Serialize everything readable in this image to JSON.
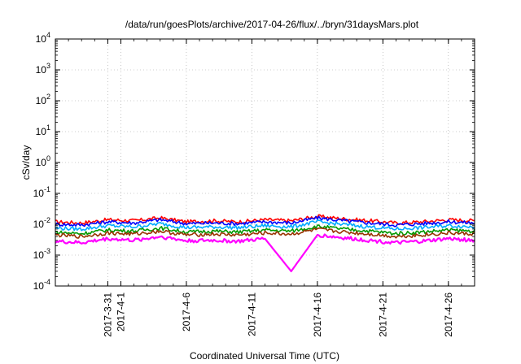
{
  "chart_data": {
    "type": "line",
    "title": "/data/run/goesPlots/archive/2017-04-26/flux/../bryn/31daysMars.plot",
    "xlabel": "Coordinated Universal Time (UTC)",
    "ylabel": "cSv/day",
    "yscale": "log",
    "ylim": [
      0.0001,
      10000
    ],
    "xlim": [
      "2017-03-27",
      "2017-04-28"
    ],
    "grid": true,
    "y_ticks": [
      {
        "mantissa": "10",
        "exp": "-4",
        "value": 0.0001
      },
      {
        "mantissa": "10",
        "exp": "-3",
        "value": 0.001
      },
      {
        "mantissa": "10",
        "exp": "-2",
        "value": 0.01
      },
      {
        "mantissa": "10",
        "exp": "-1",
        "value": 0.1
      },
      {
        "mantissa": "10",
        "exp": "0",
        "value": 1
      },
      {
        "mantissa": "10",
        "exp": "1",
        "value": 10
      },
      {
        "mantissa": "10",
        "exp": "2",
        "value": 100
      },
      {
        "mantissa": "10",
        "exp": "3",
        "value": 1000
      },
      {
        "mantissa": "10",
        "exp": "4",
        "value": 10000
      }
    ],
    "x_ticks": [
      {
        "label": "2017-3-31",
        "date": "2017-03-31"
      },
      {
        "label": "2017-4-1",
        "date": "2017-04-01"
      },
      {
        "label": "2017-4-6",
        "date": "2017-04-06"
      },
      {
        "label": "2017-4-11",
        "date": "2017-04-11"
      },
      {
        "label": "2017-4-16",
        "date": "2017-04-16"
      },
      {
        "label": "2017-4-21",
        "date": "2017-04-21"
      },
      {
        "label": "2017-4-26",
        "date": "2017-04-26"
      }
    ],
    "series": [
      {
        "color": "#ff0000",
        "x": [
          "2017-03-27",
          "2017-03-29",
          "2017-03-31",
          "2017-04-02",
          "2017-04-04",
          "2017-04-06",
          "2017-04-08",
          "2017-04-10",
          "2017-04-12",
          "2017-04-14",
          "2017-04-16",
          "2017-04-18",
          "2017-04-20",
          "2017-04-22",
          "2017-04-24",
          "2017-04-26",
          "2017-04-28"
        ],
        "y": [
          0.012,
          0.011,
          0.014,
          0.013,
          0.016,
          0.012,
          0.013,
          0.012,
          0.014,
          0.013,
          0.018,
          0.015,
          0.013,
          0.011,
          0.012,
          0.014,
          0.013
        ]
      },
      {
        "color": "#0000ff",
        "x": [
          "2017-03-27",
          "2017-03-29",
          "2017-03-31",
          "2017-04-02",
          "2017-04-04",
          "2017-04-06",
          "2017-04-08",
          "2017-04-10",
          "2017-04-12",
          "2017-04-14",
          "2017-04-16",
          "2017-04-18",
          "2017-04-20",
          "2017-04-22",
          "2017-04-24",
          "2017-04-26",
          "2017-04-28"
        ],
        "y": [
          0.01,
          0.0095,
          0.012,
          0.011,
          0.014,
          0.0105,
          0.011,
          0.0105,
          0.012,
          0.011,
          0.016,
          0.013,
          0.011,
          0.0095,
          0.0105,
          0.012,
          0.011
        ]
      },
      {
        "color": "#00aaff",
        "x": [
          "2017-03-27",
          "2017-03-29",
          "2017-03-31",
          "2017-04-02",
          "2017-04-04",
          "2017-04-06",
          "2017-04-08",
          "2017-04-10",
          "2017-04-12",
          "2017-04-14",
          "2017-04-16",
          "2017-04-18",
          "2017-04-20",
          "2017-04-22",
          "2017-04-24",
          "2017-04-26",
          "2017-04-28"
        ],
        "y": [
          0.0075,
          0.007,
          0.009,
          0.0082,
          0.0105,
          0.0078,
          0.0082,
          0.0078,
          0.009,
          0.0082,
          0.012,
          0.0098,
          0.0082,
          0.007,
          0.0078,
          0.009,
          0.0082
        ]
      },
      {
        "color": "#009900",
        "x": [
          "2017-03-27",
          "2017-03-29",
          "2017-03-31",
          "2017-04-02",
          "2017-04-04",
          "2017-04-06",
          "2017-04-08",
          "2017-04-10",
          "2017-04-12",
          "2017-04-14",
          "2017-04-16",
          "2017-04-18",
          "2017-04-20",
          "2017-04-22",
          "2017-04-24",
          "2017-04-26",
          "2017-04-28"
        ],
        "y": [
          0.0055,
          0.005,
          0.0065,
          0.006,
          0.0075,
          0.0056,
          0.006,
          0.0056,
          0.0065,
          0.006,
          0.0085,
          0.007,
          0.006,
          0.005,
          0.0056,
          0.0065,
          0.006
        ]
      },
      {
        "color": "#993300",
        "x": [
          "2017-03-27",
          "2017-03-29",
          "2017-03-31",
          "2017-04-02",
          "2017-04-04",
          "2017-04-06",
          "2017-04-08",
          "2017-04-10",
          "2017-04-12",
          "2017-04-14",
          "2017-04-16",
          "2017-04-18",
          "2017-04-20",
          "2017-04-22",
          "2017-04-24",
          "2017-04-26",
          "2017-04-28"
        ],
        "y": [
          0.0045,
          0.004,
          0.0052,
          0.0048,
          0.006,
          0.0045,
          0.0048,
          0.0045,
          0.0052,
          0.0048,
          0.0068,
          0.0056,
          0.0048,
          0.004,
          0.0045,
          0.0052,
          0.0048
        ]
      },
      {
        "color": "#ff00ff",
        "x": [
          "2017-03-27",
          "2017-03-29",
          "2017-03-31",
          "2017-04-02",
          "2017-04-04",
          "2017-04-06",
          "2017-04-08",
          "2017-04-10",
          "2017-04-12",
          "2017-04-14",
          "2017-04-16",
          "2017-04-18",
          "2017-04-20",
          "2017-04-22",
          "2017-04-24",
          "2017-04-26",
          "2017-04-28"
        ],
        "y": [
          0.0028,
          0.0025,
          0.0034,
          0.003,
          0.004,
          0.0029,
          0.003,
          0.0028,
          0.0034,
          0.0003,
          0.0045,
          0.0036,
          0.003,
          0.0025,
          0.0028,
          0.0034,
          0.003
        ]
      }
    ]
  }
}
